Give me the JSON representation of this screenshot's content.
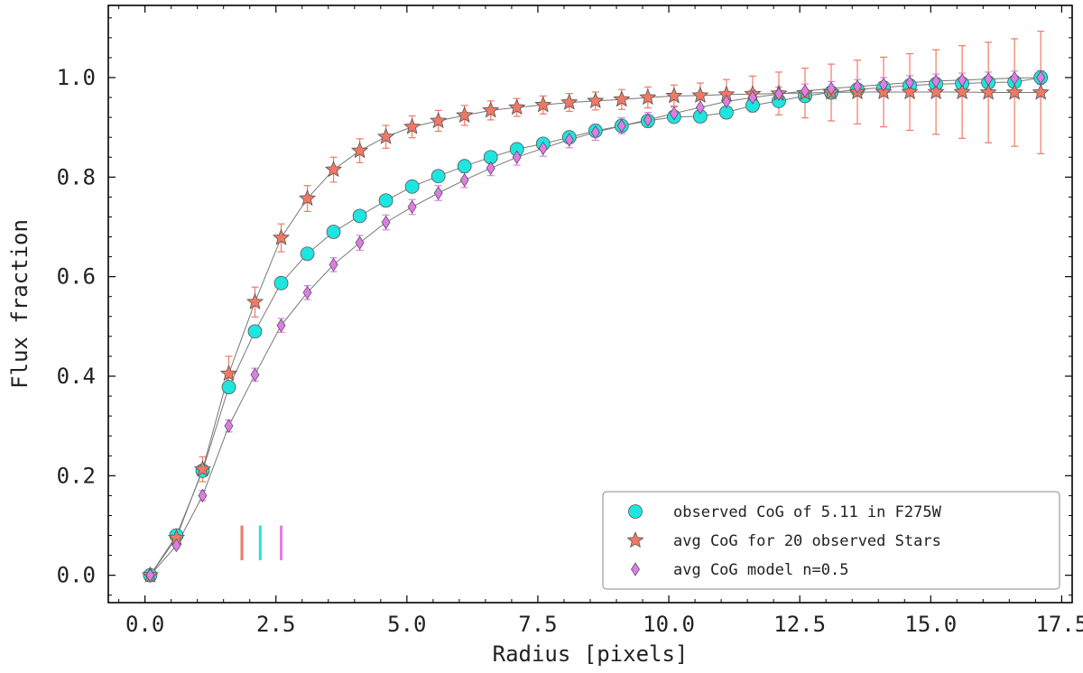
{
  "chart_data": {
    "type": "line",
    "xlabel": "Radius [pixels]",
    "ylabel": "Flux fraction",
    "xlim": [
      -0.7,
      17.7
    ],
    "ylim": [
      -0.055,
      1.145
    ],
    "xticks": [
      0.0,
      2.5,
      5.0,
      7.5,
      10.0,
      12.5,
      15.0,
      17.5
    ],
    "xtick_labels": [
      "0.0",
      "2.5",
      "5.0",
      "7.5",
      "10.0",
      "12.5",
      "15.0",
      "17.5"
    ],
    "yticks": [
      0.0,
      0.2,
      0.4,
      0.6,
      0.8,
      1.0
    ],
    "ytick_labels": [
      "0.0",
      "0.2",
      "0.4",
      "0.6",
      "0.8",
      "1.0"
    ],
    "x": [
      0.1,
      0.6,
      1.1,
      1.6,
      2.1,
      2.6,
      3.1,
      3.6,
      4.1,
      4.6,
      5.1,
      5.6,
      6.1,
      6.6,
      7.1,
      7.6,
      8.1,
      8.6,
      9.1,
      9.6,
      10.1,
      10.6,
      11.1,
      11.6,
      12.1,
      12.6,
      13.1,
      13.6,
      14.1,
      14.6,
      15.1,
      15.6,
      16.1,
      16.6,
      17.1
    ],
    "series": [
      {
        "name": "observed CoG of 5.11 in F275W",
        "marker": "circle",
        "color": "#1ee5e0",
        "values": [
          0.0,
          0.08,
          0.21,
          0.378,
          0.49,
          0.587,
          0.646,
          0.69,
          0.722,
          0.753,
          0.781,
          0.802,
          0.822,
          0.84,
          0.856,
          0.867,
          0.88,
          0.893,
          0.903,
          0.913,
          0.921,
          0.922,
          0.93,
          0.944,
          0.953,
          0.963,
          0.97,
          0.976,
          0.98,
          0.984,
          0.987,
          0.988,
          0.99,
          0.991,
          1.0
        ]
      },
      {
        "name": "avg CoG for 20 observed Stars",
        "marker": "star",
        "color": "#f07965",
        "values": [
          0.0,
          0.075,
          0.213,
          0.405,
          0.549,
          0.678,
          0.757,
          0.815,
          0.853,
          0.881,
          0.901,
          0.913,
          0.924,
          0.934,
          0.94,
          0.945,
          0.95,
          0.953,
          0.956,
          0.96,
          0.963,
          0.964,
          0.966,
          0.967,
          0.968,
          0.969,
          0.97,
          0.971,
          0.971,
          0.971,
          0.971,
          0.971,
          0.97,
          0.97,
          0.97
        ],
        "errors": [
          0.0,
          0.01,
          0.025,
          0.035,
          0.03,
          0.028,
          0.026,
          0.025,
          0.024,
          0.023,
          0.022,
          0.021,
          0.02,
          0.019,
          0.018,
          0.018,
          0.018,
          0.018,
          0.02,
          0.021,
          0.022,
          0.025,
          0.03,
          0.036,
          0.043,
          0.05,
          0.057,
          0.064,
          0.07,
          0.077,
          0.085,
          0.093,
          0.101,
          0.108,
          0.123
        ]
      },
      {
        "name": "avg CoG model n=0.5",
        "marker": "diamond",
        "color": "#e07ce8",
        "values": [
          0.0,
          0.06,
          0.16,
          0.3,
          0.403,
          0.502,
          0.568,
          0.624,
          0.668,
          0.709,
          0.74,
          0.768,
          0.794,
          0.818,
          0.84,
          0.858,
          0.875,
          0.89,
          0.903,
          0.915,
          0.928,
          0.94,
          0.952,
          0.96,
          0.967,
          0.973,
          0.978,
          0.982,
          0.986,
          0.99,
          0.993,
          0.995,
          0.997,
          0.999,
          1.0
        ],
        "errors": [
          0.0,
          0.006,
          0.01,
          0.012,
          0.013,
          0.014,
          0.014,
          0.014,
          0.015,
          0.015,
          0.015,
          0.015,
          0.015,
          0.015,
          0.016,
          0.016,
          0.016,
          0.016,
          0.016,
          0.015,
          0.015,
          0.015,
          0.015,
          0.015,
          0.014,
          0.014,
          0.014,
          0.014,
          0.014,
          0.014,
          0.014,
          0.014,
          0.014,
          0.014,
          0.014
        ]
      }
    ],
    "vlines": [
      {
        "x": 1.85,
        "color": "#f07965",
        "ymin": 0.03,
        "ymax": 0.1
      },
      {
        "x": 2.2,
        "color": "#1ee5e0",
        "ymin": 0.03,
        "ymax": 0.1
      },
      {
        "x": 2.6,
        "color": "#e07ce8",
        "ymin": 0.03,
        "ymax": 0.1
      }
    ],
    "legend": {
      "location": "lower-right",
      "entries": [
        "observed CoG of 5.11 in F275W",
        "avg CoG for 20 observed Stars",
        "avg CoG model n=0.5"
      ]
    }
  }
}
